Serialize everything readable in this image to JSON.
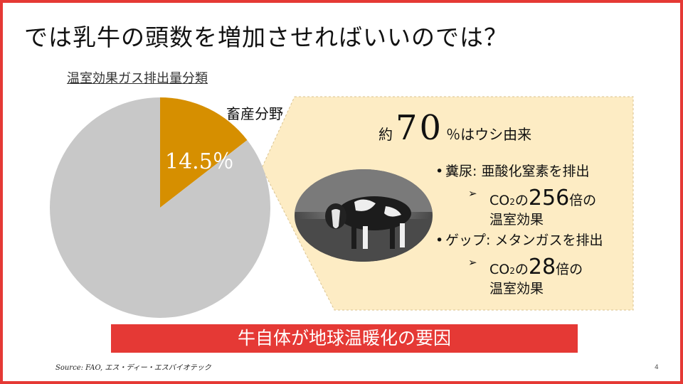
{
  "slide": {
    "title": "では乳牛の頭数を増加させればいいのでは？",
    "page_number": "4",
    "source": "Source: FAO, エス・ディー・エスバイオテック"
  },
  "colors": {
    "border": "#e53935",
    "highlight_slice": "#d68f00",
    "other_slice": "#c8c8c8",
    "callout_bg": "#fdecc4",
    "banner": "#e53935"
  },
  "chart_data": {
    "type": "pie",
    "title": "温室効果ガス排出量分類",
    "slices": [
      {
        "name": "畜産分野",
        "value": 14.5,
        "label": "14.5％"
      },
      {
        "name": "",
        "value": 85.5,
        "label": ""
      }
    ]
  },
  "callout": {
    "pre": "約",
    "number": "70",
    "post": "％はウシ由来",
    "bullet1": "糞尿: 亜酸化窒素を排出",
    "b1_prefix": "CO",
    "b1_sub": "2",
    "b1_mid": "の",
    "b1_num": "256",
    "b1_suffix": "倍の",
    "b1_line2": "温室効果",
    "bullet2": "ゲップ: メタンガスを排出",
    "b2_prefix": "CO",
    "b2_sub": "2",
    "b2_mid": "の",
    "b2_num": "28",
    "b2_suffix": "倍の",
    "b2_line2": "温室効果",
    "arrow": "➢"
  },
  "conclusion": "牛自体が地球温暖化の要因"
}
